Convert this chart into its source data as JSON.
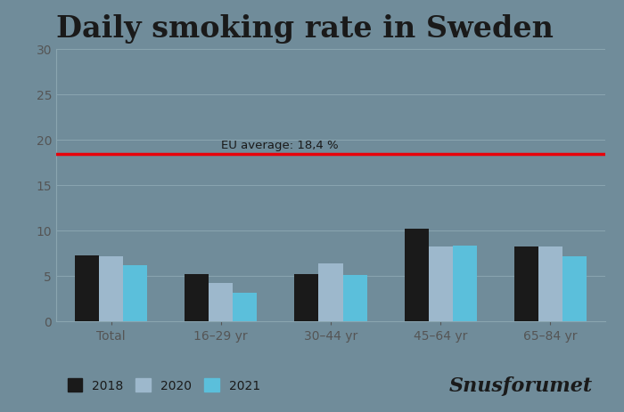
{
  "title": "Daily smoking rate in Sweden",
  "categories": [
    "Total",
    "16–29 yr",
    "30–44 yr",
    "45–64 yr",
    "65–84 yr"
  ],
  "series": {
    "2018": [
      7.2,
      5.2,
      5.2,
      10.2,
      8.2
    ],
    "2020": [
      7.1,
      4.2,
      6.4,
      8.2,
      8.2
    ],
    "2021": [
      6.2,
      3.1,
      5.1,
      8.3,
      7.1
    ]
  },
  "bar_colors": {
    "2018": "#1a1a1a",
    "2020": "#9db8cc",
    "2021": "#5bbfdb"
  },
  "eu_average": 18.4,
  "eu_label": "EU average: 18,4 %",
  "ylim": [
    0,
    30
  ],
  "yticks": [
    0,
    5,
    10,
    15,
    20,
    25,
    30
  ],
  "background_color": "#708c9a",
  "grid_color": "#8aa5b0",
  "title_color": "#1a1a1a",
  "eu_line_color": "#e8000a",
  "eu_label_color": "#1a1a1a",
  "brand": "Snusforumet",
  "title_fontsize": 24,
  "axis_fontsize": 10,
  "legend_fontsize": 10,
  "brand_fontsize": 16
}
